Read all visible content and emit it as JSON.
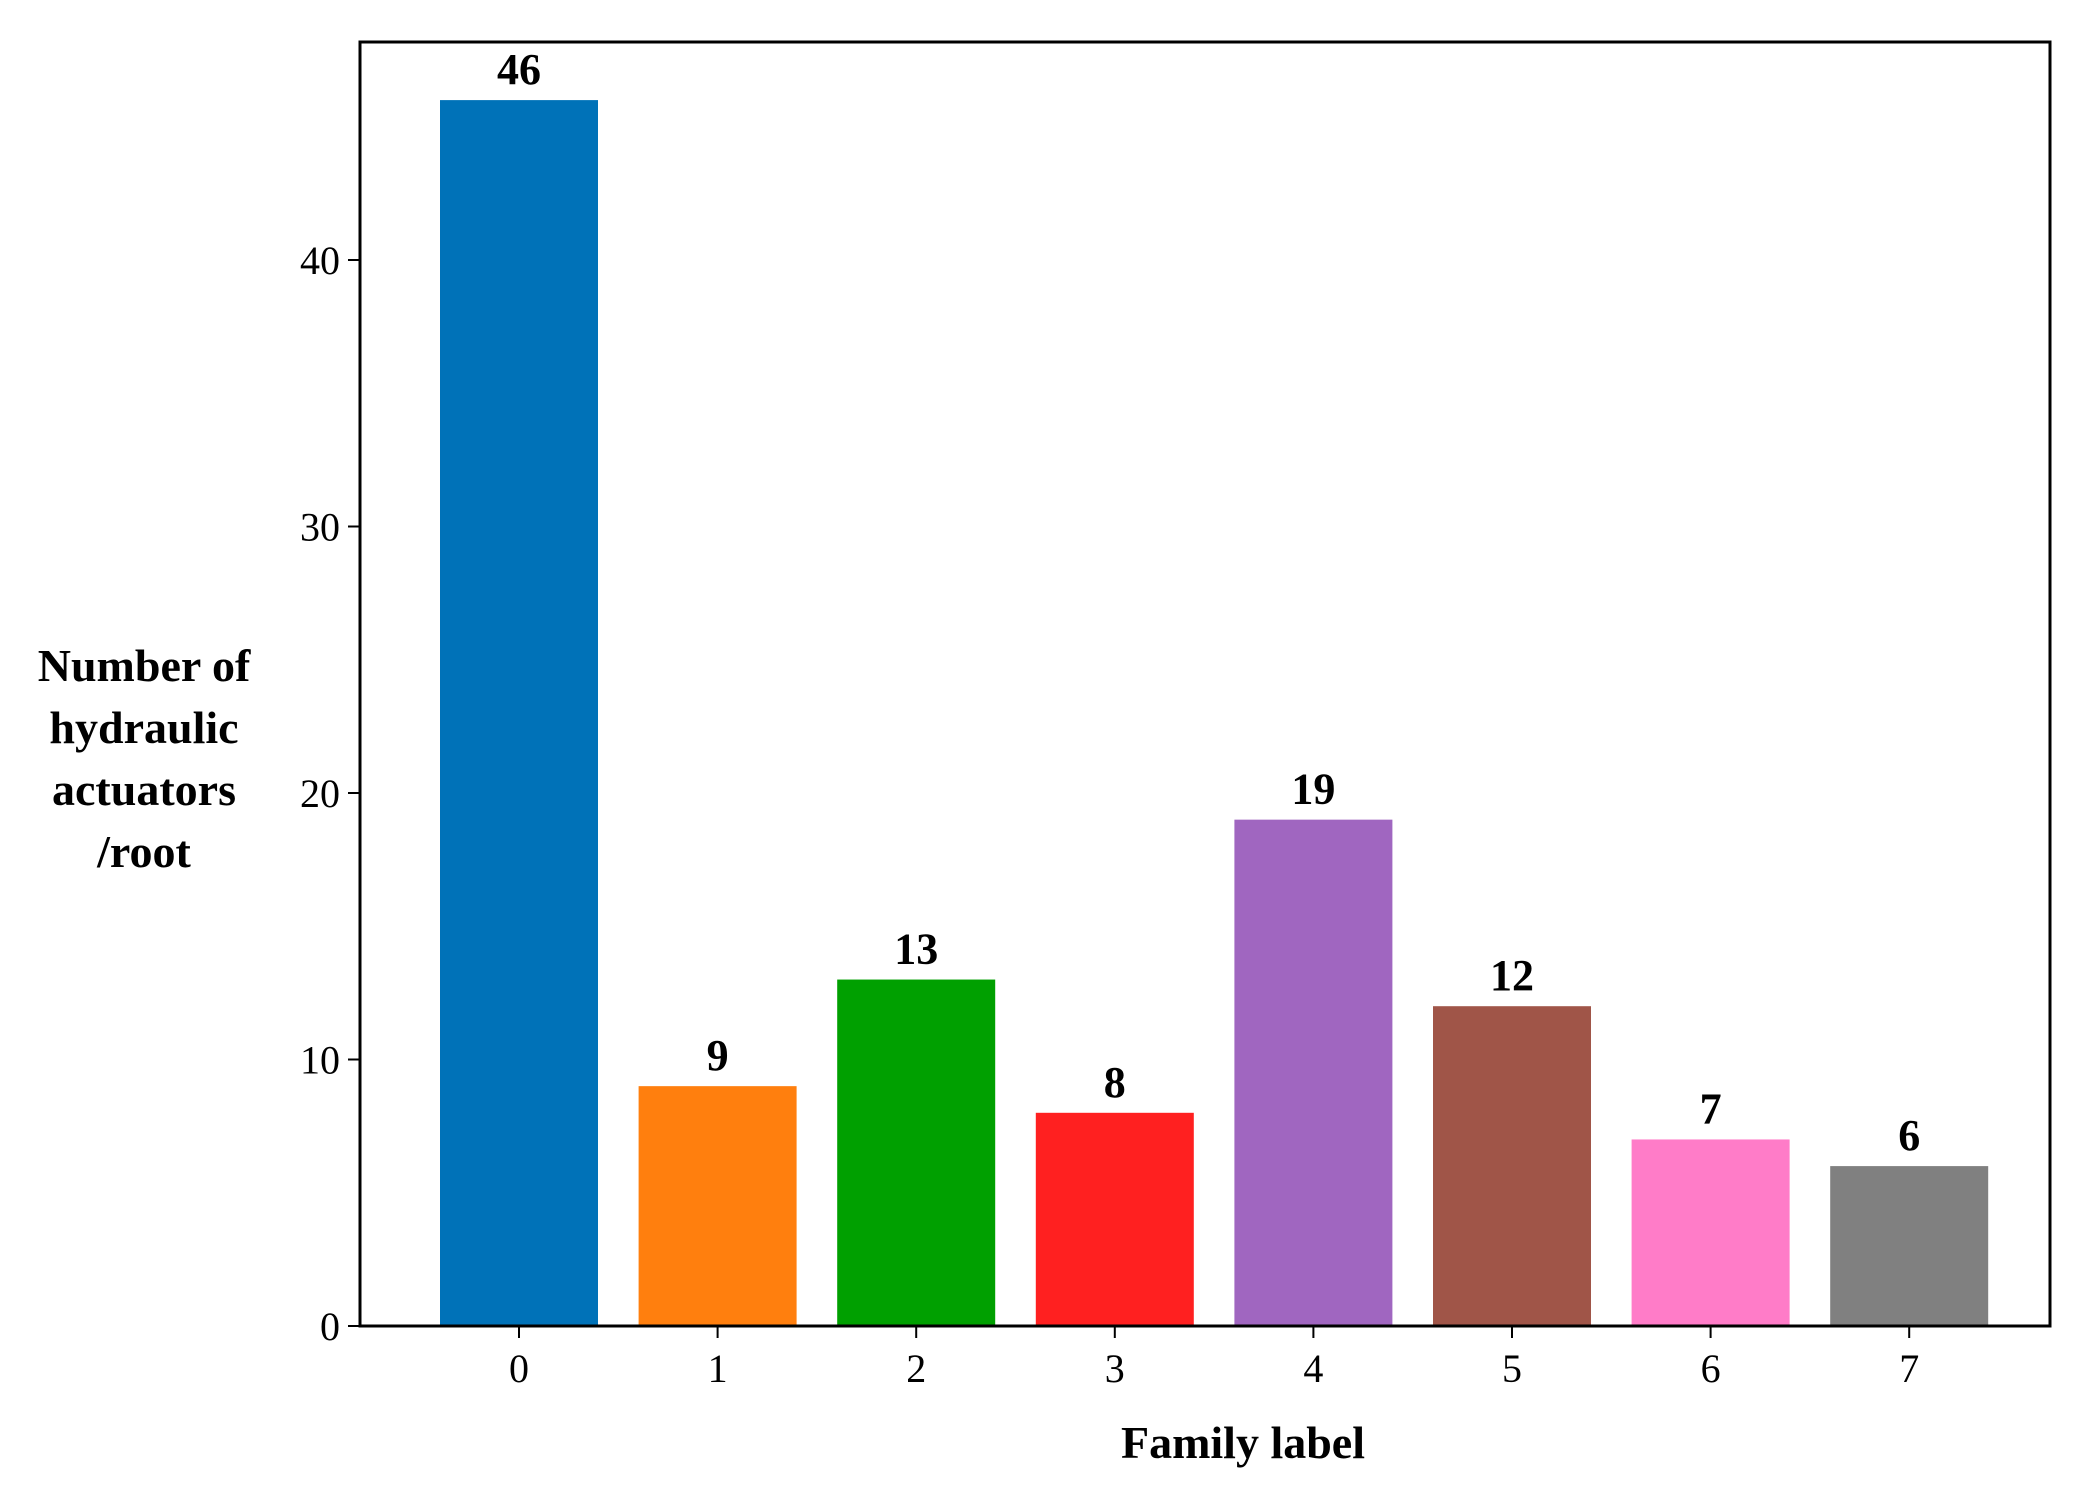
{
  "chart_data": {
    "type": "bar",
    "title": "",
    "xlabel": "Family label",
    "ylabel_lines": [
      "Number of",
      "hydraulic",
      "actuators",
      "/root"
    ],
    "categories": [
      "0",
      "1",
      "2",
      "3",
      "4",
      "5",
      "6",
      "7"
    ],
    "values": [
      46,
      9,
      13,
      8,
      19,
      12,
      7,
      6
    ],
    "data_labels": [
      "46",
      "9",
      "13",
      "8",
      "19",
      "12",
      "7",
      "6"
    ],
    "colors": [
      "#0072b8",
      "#ff7f0e",
      "#00a000",
      "#ff2020",
      "#a066c0",
      "#a05548",
      "#ff7cc8",
      "#808080"
    ],
    "ylim": [
      0,
      50
    ],
    "yticks": [
      0,
      10,
      20,
      30,
      40
    ],
    "ytick_labels": [
      "0",
      "10",
      "20",
      "30",
      "40"
    ],
    "grid": false,
    "legend": "none"
  }
}
